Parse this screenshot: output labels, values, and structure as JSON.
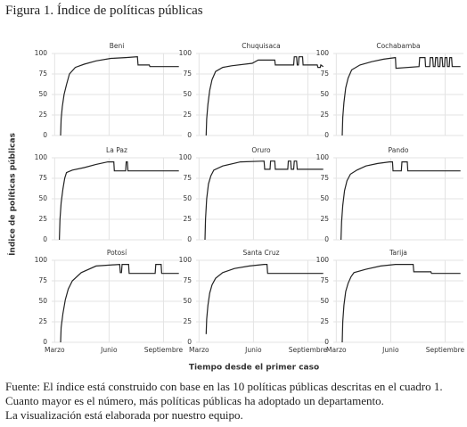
{
  "title": "Figura 1. Índice de políticas públicas",
  "y_label": "Índice de políticas públicas",
  "x_label": "Tiempo desde el primer caso",
  "note": [
    "Fuente: El índice está construido con base en las 10 políticas públicas descritas en el cuadro 1. Cuanto mayor es el número, más políticas públicas ha adoptado un departamento.",
    "La visualización está elaborada por nuestro equipo."
  ],
  "chart_data": [
    {
      "type": "line",
      "title": "Beni",
      "x": [
        10,
        11,
        13,
        16,
        20,
        25,
        35,
        50,
        70,
        95,
        120,
        140,
        141,
        160,
        161,
        210
      ],
      "values": [
        0,
        20,
        35,
        50,
        62,
        75,
        83,
        87,
        91,
        94,
        95,
        96,
        86,
        86,
        84,
        84
      ],
      "color": "#222222",
      "xlim": [
        -5,
        215
      ],
      "ylim": [
        0,
        100
      ],
      "xticks": [
        {
          "value": 0,
          "label": "Marzo"
        },
        {
          "value": 92,
          "label": "Junio"
        },
        {
          "value": 184,
          "label": "Septiembre"
        }
      ],
      "yticks": [
        0,
        25,
        50,
        75,
        100
      ],
      "grid": true
    },
    {
      "type": "line",
      "title": "Chuquisaca",
      "x": [
        12,
        13,
        15,
        18,
        22,
        28,
        40,
        55,
        90,
        100,
        128,
        129,
        160,
        161,
        165,
        166,
        168,
        169,
        175,
        176,
        178,
        179,
        200,
        201,
        205,
        206,
        210
      ],
      "values": [
        0,
        20,
        38,
        55,
        68,
        78,
        83,
        85,
        88,
        92,
        92,
        86,
        86,
        96,
        96,
        86,
        86,
        96,
        96,
        86,
        86,
        86,
        86,
        83,
        83,
        86,
        84
      ],
      "color": "#222222",
      "xlim": [
        -5,
        215
      ],
      "ylim": [
        0,
        100
      ],
      "xticks": [
        {
          "value": 0,
          "label": "Marzo"
        },
        {
          "value": 92,
          "label": "Junio"
        },
        {
          "value": 184,
          "label": "Septiembre"
        }
      ],
      "yticks": [
        0,
        25,
        50,
        75,
        100
      ],
      "grid": true
    },
    {
      "type": "line",
      "title": "Cochabamba",
      "x": [
        10,
        11,
        13,
        16,
        20,
        26,
        40,
        60,
        80,
        100,
        101,
        140,
        141,
        150,
        151,
        158,
        159,
        163,
        164,
        167,
        168,
        171,
        172,
        175,
        176,
        179,
        180,
        183,
        184,
        187,
        188,
        191,
        192,
        195,
        196,
        210
      ],
      "values": [
        0,
        22,
        40,
        58,
        70,
        80,
        86,
        90,
        93,
        95,
        82,
        84,
        95,
        95,
        84,
        84,
        95,
        95,
        84,
        84,
        95,
        95,
        84,
        84,
        95,
        95,
        84,
        84,
        95,
        95,
        84,
        84,
        95,
        95,
        84,
        84
      ],
      "color": "#222222",
      "xlim": [
        -5,
        215
      ],
      "ylim": [
        0,
        100
      ],
      "xticks": [
        {
          "value": 0,
          "label": "Marzo"
        },
        {
          "value": 92,
          "label": "Junio"
        },
        {
          "value": 184,
          "label": "Septiembre"
        }
      ],
      "yticks": [
        0,
        25,
        50,
        75,
        100
      ],
      "grid": true
    },
    {
      "type": "line",
      "title": "La Paz",
      "x": [
        8,
        9,
        11,
        14,
        17,
        20,
        30,
        50,
        70,
        90,
        100,
        101,
        120,
        121,
        123,
        124,
        210
      ],
      "values": [
        0,
        25,
        45,
        62,
        75,
        82,
        85,
        88,
        92,
        95,
        95,
        84,
        84,
        95,
        95,
        84,
        84
      ],
      "color": "#222222",
      "xlim": [
        -5,
        215
      ],
      "ylim": [
        0,
        100
      ],
      "xticks": [
        {
          "value": 0,
          "label": "Marzo"
        },
        {
          "value": 92,
          "label": "Junio"
        },
        {
          "value": 184,
          "label": "Septiembre"
        }
      ],
      "yticks": [
        0,
        25,
        50,
        75,
        100
      ],
      "grid": true
    },
    {
      "type": "line",
      "title": "Oruro",
      "x": [
        10,
        11,
        13,
        16,
        20,
        25,
        40,
        70,
        110,
        111,
        120,
        121,
        128,
        129,
        150,
        151,
        155,
        156,
        160,
        161,
        165,
        166,
        210
      ],
      "values": [
        0,
        25,
        50,
        68,
        78,
        85,
        90,
        95,
        96,
        86,
        86,
        96,
        96,
        86,
        86,
        96,
        96,
        86,
        86,
        96,
        96,
        86,
        86
      ],
      "color": "#222222",
      "xlim": [
        -5,
        215
      ],
      "ylim": [
        0,
        100
      ],
      "xticks": [
        {
          "value": 0,
          "label": "Marzo"
        },
        {
          "value": 92,
          "label": "Junio"
        },
        {
          "value": 184,
          "label": "Septiembre"
        }
      ],
      "yticks": [
        0,
        25,
        50,
        75,
        100
      ],
      "grid": true
    },
    {
      "type": "line",
      "title": "Pando",
      "x": [
        8,
        9,
        11,
        14,
        18,
        24,
        35,
        50,
        70,
        90,
        95,
        96,
        110,
        111,
        120,
        121,
        210
      ],
      "values": [
        0,
        22,
        42,
        60,
        72,
        80,
        85,
        90,
        93,
        95,
        95,
        84,
        84,
        95,
        95,
        84,
        84
      ],
      "color": "#222222",
      "xlim": [
        -5,
        215
      ],
      "ylim": [
        0,
        100
      ],
      "xticks": [
        {
          "value": 0,
          "label": "Marzo"
        },
        {
          "value": 92,
          "label": "Junio"
        },
        {
          "value": 184,
          "label": "Septiembre"
        }
      ],
      "yticks": [
        0,
        25,
        50,
        75,
        100
      ],
      "grid": true
    },
    {
      "type": "line",
      "title": "Potosí",
      "x": [
        10,
        11,
        14,
        18,
        23,
        30,
        45,
        70,
        110,
        111,
        113,
        114,
        125,
        126,
        170,
        171,
        180,
        181,
        210
      ],
      "values": [
        0,
        18,
        35,
        52,
        65,
        75,
        85,
        93,
        95,
        85,
        85,
        95,
        95,
        84,
        84,
        95,
        95,
        84,
        84
      ],
      "color": "#222222",
      "xlim": [
        -5,
        215
      ],
      "ylim": [
        0,
        100
      ],
      "xticks": [
        {
          "value": 0,
          "label": "Marzo"
        },
        {
          "value": 92,
          "label": "Junio"
        },
        {
          "value": 184,
          "label": "Septiembre"
        }
      ],
      "yticks": [
        0,
        25,
        50,
        75,
        100
      ],
      "grid": true
    },
    {
      "type": "line",
      "title": "Santa Cruz",
      "x": [
        12,
        13,
        15,
        18,
        22,
        28,
        40,
        60,
        85,
        110,
        115,
        116,
        210
      ],
      "values": [
        10,
        28,
        45,
        60,
        70,
        78,
        85,
        90,
        93,
        95,
        95,
        84,
        84
      ],
      "color": "#222222",
      "xlim": [
        -5,
        215
      ],
      "ylim": [
        0,
        100
      ],
      "xticks": [
        {
          "value": 0,
          "label": "Marzo"
        },
        {
          "value": 92,
          "label": "Junio"
        },
        {
          "value": 184,
          "label": "Septiembre"
        }
      ],
      "yticks": [
        0,
        25,
        50,
        75,
        100
      ],
      "grid": true
    },
    {
      "type": "line",
      "title": "Tarija",
      "x": [
        10,
        11,
        13,
        16,
        20,
        25,
        30,
        50,
        75,
        100,
        130,
        131,
        160,
        161,
        210
      ],
      "values": [
        0,
        25,
        45,
        62,
        72,
        80,
        85,
        89,
        93,
        95,
        95,
        86,
        86,
        84,
        84
      ],
      "color": "#222222",
      "xlim": [
        -5,
        215
      ],
      "ylim": [
        0,
        100
      ],
      "xticks": [
        {
          "value": 0,
          "label": "Marzo"
        },
        {
          "value": 92,
          "label": "Junio"
        },
        {
          "value": 184,
          "label": "Septiembre"
        }
      ],
      "yticks": [
        0,
        25,
        50,
        75,
        100
      ],
      "grid": true
    }
  ]
}
